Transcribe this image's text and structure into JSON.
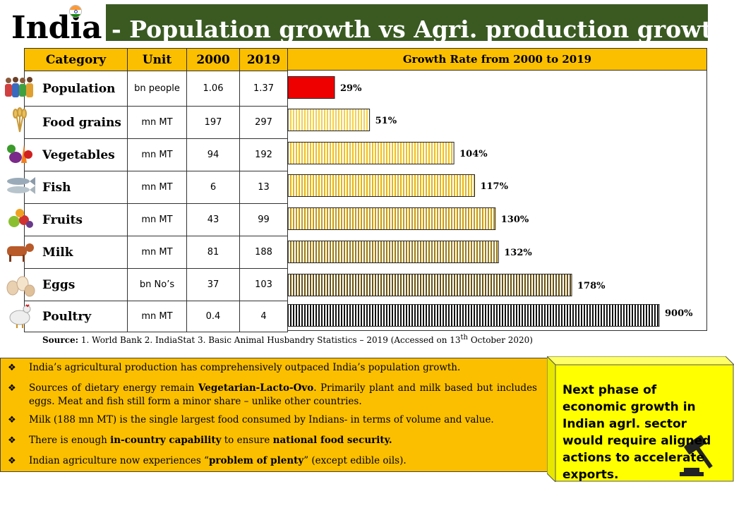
{
  "header": {
    "country": "India",
    "title": "- Population growth vs Agri. production growth"
  },
  "table": {
    "headers": [
      "Category",
      "Unit",
      "2000",
      "2019"
    ],
    "chart_header": "Growth Rate from 2000 to 2019",
    "rows": [
      {
        "category": "Population",
        "unit": "bn people",
        "y2000": "1.06",
        "y2019": "1.37",
        "icon": "people-icon"
      },
      {
        "category": "Food grains",
        "unit": "mn MT",
        "y2000": "197",
        "y2019": "297",
        "icon": "wheat-icon"
      },
      {
        "category": "Vegetables",
        "unit": "mn MT",
        "y2000": "94",
        "y2019": "192",
        "icon": "vegetables-icon"
      },
      {
        "category": "Fish",
        "unit": "mn MT",
        "y2000": "6",
        "y2019": "13",
        "icon": "fish-icon"
      },
      {
        "category": "Fruits",
        "unit": "mn MT",
        "y2000": "43",
        "y2019": "99",
        "icon": "fruits-icon"
      },
      {
        "category": "Milk",
        "unit": "mn MT",
        "y2000": "81",
        "y2019": "188",
        "icon": "cow-icon"
      },
      {
        "category": "Eggs",
        "unit": "bn No’s",
        "y2000": "37",
        "y2019": "103",
        "icon": "eggs-icon"
      },
      {
        "category": "Poultry",
        "unit": "mn MT",
        "y2000": "0.4",
        "y2019": "4",
        "icon": "hen-icon"
      }
    ]
  },
  "chart_data": {
    "type": "bar",
    "orientation": "horizontal",
    "title": "Growth Rate from 2000 to 2019",
    "categories": [
      "Population",
      "Food grains",
      "Vegetables",
      "Fish",
      "Fruits",
      "Milk",
      "Eggs",
      "Poultry"
    ],
    "values": [
      29,
      51,
      104,
      117,
      130,
      132,
      178,
      900
    ],
    "labels": [
      "29%",
      "51%",
      "104%",
      "117%",
      "130%",
      "132%",
      "178%",
      "900%"
    ],
    "colors": [
      "#ee0000",
      "#f5cf4a",
      "#f0bf22",
      "#e6b312",
      "#c89a14",
      "#9c7a16",
      "#6a5212",
      "#111111"
    ],
    "note": "bar lengths not to scale"
  },
  "source": {
    "label": "Source:",
    "text": "1. World Bank  2. IndiaStat  3. Basic Animal Husbandry Statistics – 2019 (Accessed on 13",
    "sup": "th",
    "tail": " October 2020)"
  },
  "bullets": [
    {
      "parts": [
        {
          "t": "India’s agricultural production has comprehensively outpaced India’s population growth."
        }
      ]
    },
    {
      "parts": [
        {
          "t": "Sources of dietary energy remain "
        },
        {
          "t": "Vegetarian-Lacto-Ovo",
          "b": true
        },
        {
          "t": ". Primarily plant and milk based but includes eggs. Meat and fish still form a minor share – unlike other countries."
        }
      ]
    },
    {
      "parts": [
        {
          "t": "Milk (188 mn MT) is the single largest food consumed by Indians- in terms of volume and value."
        }
      ]
    },
    {
      "parts": [
        {
          "t": "There is enough "
        },
        {
          "t": "in-country capability",
          "b": true
        },
        {
          "t": " to ensure "
        },
        {
          "t": "national food security.",
          "b": true
        }
      ]
    },
    {
      "parts": [
        {
          "t": "Indian agriculture now experiences “"
        },
        {
          "t": "problem of plenty",
          "b": true
        },
        {
          "t": "” (except edible oils)."
        }
      ]
    }
  ],
  "callout": {
    "text": "Next phase of economic growth in Indian agrl. sector would require aligned actions to accelerate exports."
  },
  "colors": {
    "header_bg": "#fbbf00",
    "banner_bg": "#3a5a22",
    "callout_bg": "#ffff00"
  }
}
